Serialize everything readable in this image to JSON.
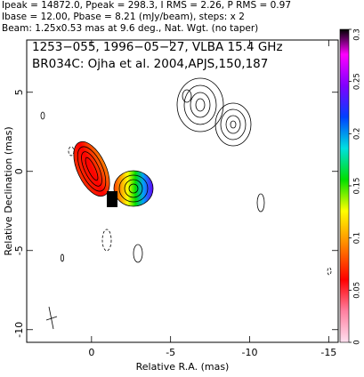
{
  "header": [
    "Ipeak = 14872.0, Ppeak = 298.3, I RMS = 2.26, P RMS = 0.97",
    "Ibase = 12.00, Pbase = 8.21 (mJy/beam), steps: x 2",
    "Beam: 1.25x0.53 mas at 9.6 deg., Nat. Wgt. (no taper)"
  ],
  "chart_data": {
    "type": "contour",
    "annotations": [
      "1253−055, 1996−05−27, VLBA 15.4 GHz",
      "BR034C: Ojha et al. 2004,APJS,150,187"
    ],
    "x_label": "Relative R.A. (mas)",
    "y_label": "Relative Declination (mas)",
    "xlim": [
      4.1,
      -15.6
    ],
    "xticks": [
      0,
      -5,
      -10,
      -15
    ],
    "ylim": [
      -10.8,
      8.3
    ],
    "yticks": [
      5,
      0,
      -5,
      -10
    ],
    "colorbar": {
      "lim": [
        0,
        0.3
      ],
      "ticks": [
        0,
        0.05,
        0.1,
        0.15,
        0.2,
        0.25,
        0.3
      ]
    }
  }
}
